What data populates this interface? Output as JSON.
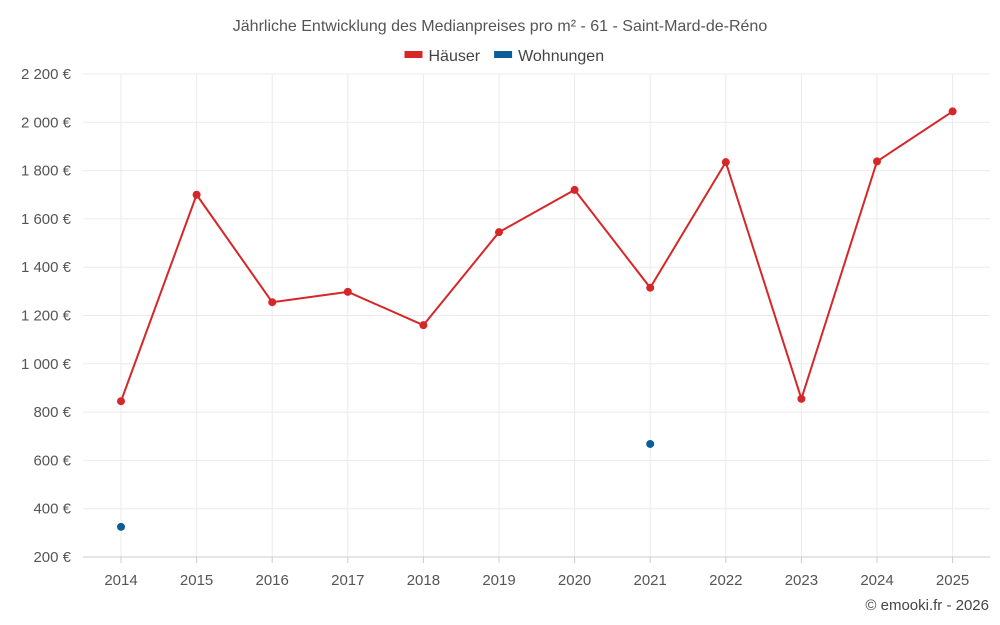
{
  "chart_data": {
    "type": "line",
    "title": "Jährliche Entwicklung des Medianpreises pro m² - 61 - Saint-Mard-de-Réno",
    "categories": [
      "2014",
      "2015",
      "2016",
      "2017",
      "2018",
      "2019",
      "2020",
      "2021",
      "2022",
      "2023",
      "2024",
      "2025"
    ],
    "ylim": [
      200,
      2200
    ],
    "yticks": [
      200,
      400,
      600,
      800,
      1000,
      1200,
      1400,
      1600,
      1800,
      2000,
      2200
    ],
    "ytick_labels": [
      "200 €",
      "400 €",
      "600 €",
      "800 €",
      "1 000 €",
      "1 200 €",
      "1 400 €",
      "1 600 €",
      "1 800 €",
      "2 000 €",
      "2 200 €"
    ],
    "legend_position": "top-center",
    "series": [
      {
        "name": "Häuser",
        "color": "#d62728",
        "values": [
          845,
          1700,
          1255,
          1298,
          1160,
          1545,
          1720,
          1315,
          1835,
          855,
          1838,
          2045
        ]
      },
      {
        "name": "Wohnungen",
        "color": "#0b5f98",
        "values": [
          325,
          null,
          null,
          null,
          null,
          null,
          null,
          668,
          null,
          null,
          null,
          null
        ]
      }
    ],
    "credit": "© emooki.fr - 2026"
  }
}
